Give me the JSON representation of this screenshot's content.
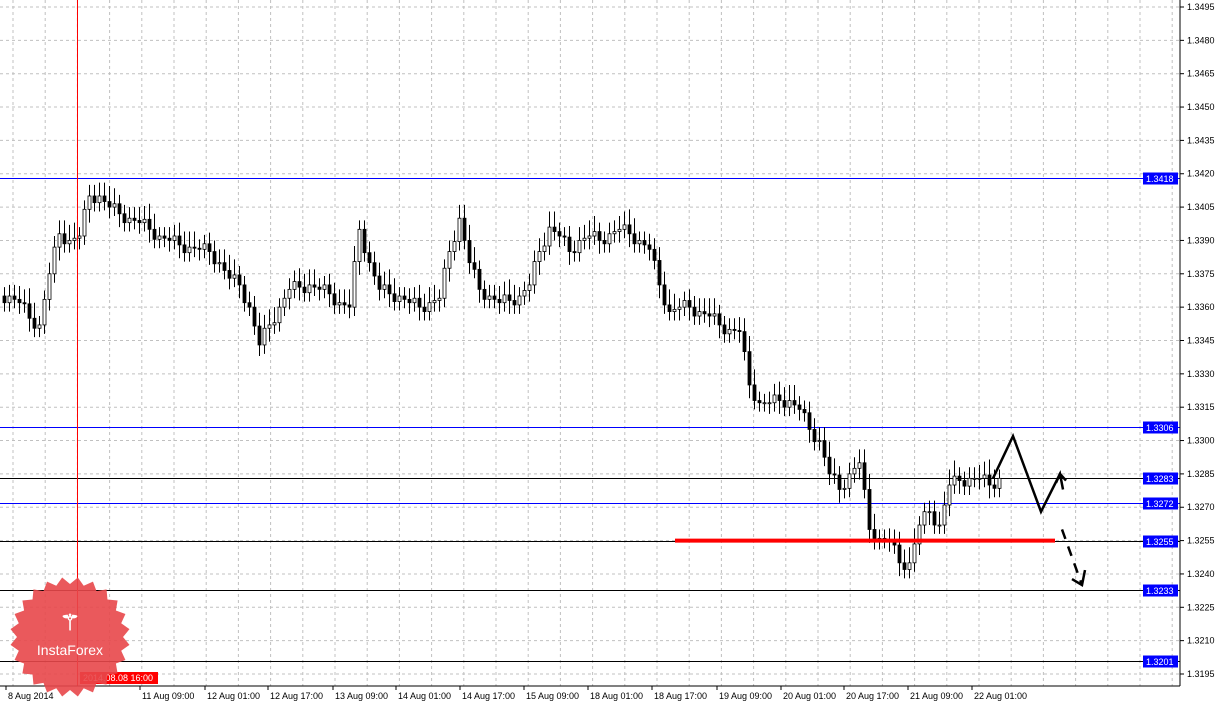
{
  "chart_data": {
    "type": "candlestick",
    "title": "",
    "ylim": [
      1.3189,
      1.35
    ],
    "grid": true,
    "y_ticks": [
      "1.3495",
      "1.3480",
      "1.3465",
      "1.3450",
      "1.3435",
      "1.3420",
      "1.3405",
      "1.3390",
      "1.3375",
      "1.3360",
      "1.3345",
      "1.3330",
      "1.3315",
      "1.3300",
      "1.3285",
      "1.3270",
      "1.3255",
      "1.3240",
      "1.3225",
      "1.3210",
      "1.3195"
    ],
    "x_ticks": [
      "8 Aug 2014",
      "11 Aug 09:00",
      "12 Aug 01:00",
      "12 Aug 17:00",
      "13 Aug 09:00",
      "14 Aug 01:00",
      "14 Aug 17:00",
      "15 Aug 09:00",
      "18 Aug 01:00",
      "18 Aug 17:00",
      "19 Aug 09:00",
      "20 Aug 01:00",
      "20 Aug 17:00",
      "21 Aug 09:00",
      "22 Aug 01:00"
    ],
    "closes": [
      1.3365,
      1.3362,
      1.3355,
      1.3352,
      1.3375,
      1.3393,
      1.339,
      1.3392,
      1.341,
      1.341,
      1.3405,
      1.3402,
      1.34,
      1.3398,
      1.3395,
      1.3392,
      1.339,
      1.3388,
      1.3387,
      1.3386,
      1.3385,
      1.338,
      1.3373,
      1.337,
      1.336,
      1.3343,
      1.3352,
      1.336,
      1.3368,
      1.3369,
      1.337,
      1.3368,
      1.3366,
      1.3362,
      1.336,
      1.3395,
      1.338,
      1.3368,
      1.3366,
      1.3365,
      1.3362,
      1.336,
      1.3362,
      1.3364,
      1.3385,
      1.34,
      1.338,
      1.3368,
      1.3365,
      1.3362,
      1.3363,
      1.3365,
      1.337,
      1.3385,
      1.3396,
      1.3392,
      1.3385,
      1.339,
      1.3392,
      1.339,
      1.3393,
      1.3395,
      1.3393,
      1.339,
      1.3386,
      1.337,
      1.3358,
      1.336,
      1.336,
      1.3358,
      1.3356,
      1.3352,
      1.335,
      1.3349,
      1.3325,
      1.3317,
      1.3317,
      1.3318,
      1.3318,
      1.3314,
      1.3305,
      1.33,
      1.3285,
      1.3278,
      1.3285,
      1.329,
      1.326,
      1.3256,
      1.3255,
      1.3245,
      1.3245,
      1.3262,
      1.3268,
      1.3262,
      1.328,
      1.3282,
      1.3283,
      1.3283,
      1.328,
      1.3283
    ],
    "level_lines": [
      {
        "label": "1.3418",
        "price": 1.3418,
        "color": "#0000ff"
      },
      {
        "label": "1.3306",
        "price": 1.3306,
        "color": "#0000ff"
      },
      {
        "label": "1.3283",
        "price": 1.3283,
        "color": "#000000"
      },
      {
        "label": "1.3272",
        "price": 1.3272,
        "color": "#0000ff"
      },
      {
        "label": "1.3255",
        "price": 1.3255,
        "color": "#000000"
      },
      {
        "label": "1.3233",
        "price": 1.3233,
        "color": "#000000"
      },
      {
        "label": "1.3201",
        "price": 1.3201,
        "color": "#000000"
      }
    ],
    "support_line": {
      "price": 1.3255,
      "color": "#ff0000"
    },
    "cursor_label": "2014.08.08 16:00",
    "forecast_path": [
      1.3283,
      1.3302,
      1.3268,
      1.3285,
      1.3278
    ],
    "forecast_dashed": [
      1.326,
      1.3235
    ]
  },
  "logo": {
    "text": "InstaForex"
  },
  "colors": {
    "tag_bg": "#0000ff",
    "cursor": "#ff0000",
    "candle": "#000000",
    "grid": "#c0c0c0"
  }
}
